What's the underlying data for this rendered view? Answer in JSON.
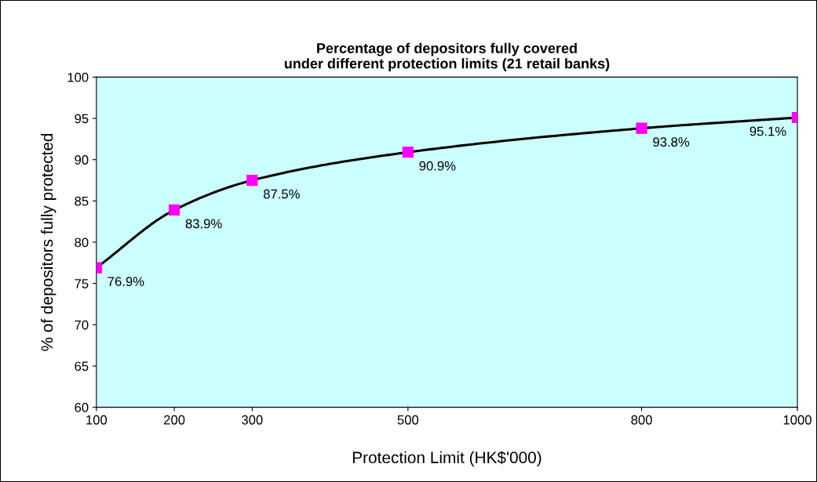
{
  "chart_data": {
    "type": "line",
    "title": "Percentage of depositors fully covered\nunder different protection limits (21 retail banks)",
    "xlabel": "Protection Limit (HK$'000)",
    "ylabel": "% of depositors fully protected",
    "x": [
      100,
      200,
      300,
      500,
      800,
      1000
    ],
    "series": [
      {
        "color": "#000000",
        "values": [
          76.9,
          83.9,
          87.5,
          90.9,
          93.8,
          95.1
        ],
        "value_labels": [
          "76.9%",
          "83.9%",
          "87.5%",
          "90.9%",
          "93.8%",
          "95.1%"
        ]
      }
    ],
    "xlim": [
      100,
      1000
    ],
    "xticks": [
      100,
      200,
      300,
      500,
      800,
      1000
    ],
    "ylim": [
      60,
      100
    ],
    "yticks": [
      60,
      65,
      70,
      75,
      80,
      85,
      90,
      95,
      100
    ],
    "marker": "square",
    "line_style": "solid"
  }
}
